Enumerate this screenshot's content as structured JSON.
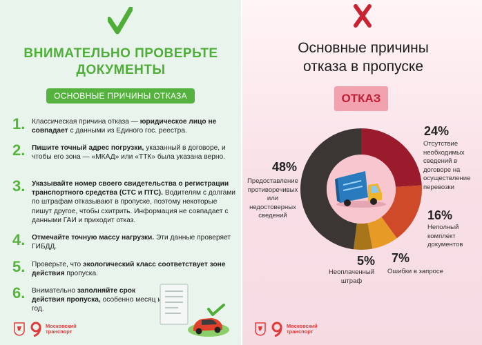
{
  "left": {
    "title_line1": "ВНИМАТЕЛЬНО ПРОВЕРЬТЕ",
    "title_line2": "ДОКУМЕНТЫ",
    "section_label": "ОСНОВНЫЕ ПРИЧИНЫ ОТКАЗА",
    "reasons": [
      {
        "num": "1.",
        "html_parts": [
          "Классическая причина отказа — ",
          "юридическое лицо не совпадает",
          " с данными из Единого гос. реестра."
        ]
      },
      {
        "num": "2.",
        "html_parts": [
          "Пишите точный адрес погрузки,",
          " указанный в договоре, и чтобы его зона — «МКАД» или «ТТК» была указана верно."
        ]
      },
      {
        "num": "3.",
        "html_parts": [
          "Указывайте номер своего свидетельства о регистрации транспортного средства (СТС и ПТС).",
          " Водителям с долгами по штрафам отказывают в пропуске, поэтому некоторые пишут другое, чтобы схитрить. Информация не совпадает с данными ГАИ и приходит отказ."
        ]
      },
      {
        "num": "4.",
        "html_parts": [
          "Отмечайте точную массу нагрузки.",
          " Эти данные проверяет ГИБДД."
        ]
      },
      {
        "num": "5.",
        "html_parts": [
          "Проверьте, что ",
          "экологический класс соответствует зоне действия",
          " пропуска."
        ]
      },
      {
        "num": "6.",
        "html_parts": [
          "Внимательно ",
          "заполняйте срок действия пропуска,",
          " особенно месяц и год."
        ]
      }
    ],
    "brand_line1": "Московский",
    "brand_line2": "транспорт"
  },
  "right": {
    "title_line1": "Основные причины",
    "title_line2": "отказа в пропуске",
    "badge": "ОТКАЗ",
    "slices": [
      {
        "pct": "24%",
        "value": 24,
        "label": "Отсутствие необходимых сведений в договоре на осуществление перевозки",
        "color": "#9a1b2c"
      },
      {
        "pct": "16%",
        "value": 16,
        "label": "Неполный комплект документов",
        "color": "#cf4a28"
      },
      {
        "pct": "7%",
        "value": 7,
        "label": "Ошибки в запросе",
        "color": "#e79a26"
      },
      {
        "pct": "5%",
        "value": 5,
        "label": "Неоплаченный штраф",
        "color": "#a8751b"
      },
      {
        "pct": "48%",
        "value": 48,
        "label": "Предоставление противоречивых или недостоверных сведений",
        "color": "#3b3533"
      }
    ],
    "brand_line1": "Московский",
    "brand_line2": "транспорт"
  },
  "colors": {
    "accent_green": "#55b23e",
    "accent_red": "#c02037"
  },
  "icons": [
    "check-mark-icon",
    "cross-mark-icon",
    "truck-icon",
    "checklist-icon",
    "car-icon",
    "moscow-emblem-icon",
    "transport-nine-logo-icon"
  ]
}
